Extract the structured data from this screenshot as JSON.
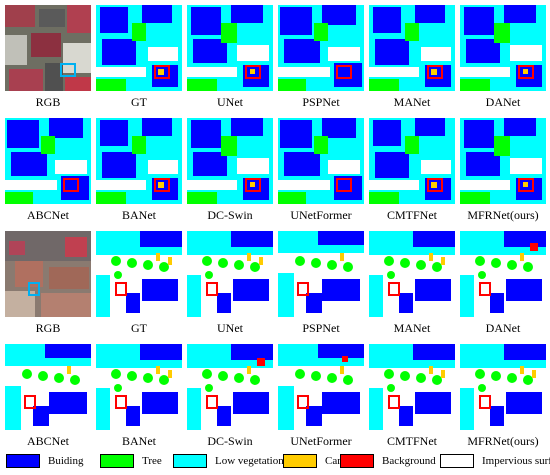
{
  "figure": {
    "rows": [
      {
        "labels": [
          "RGB",
          "GT",
          "UNet",
          "PSPNet",
          "MANet",
          "DANet"
        ]
      },
      {
        "labels": [
          "ABCNet",
          "BANet",
          "DC-Swin",
          "UNetFormer",
          "CMTFNet",
          "MFRNet(ours)"
        ]
      },
      {
        "labels": [
          "RGB",
          "GT",
          "UNet",
          "PSPNet",
          "MANet",
          "DANet"
        ]
      },
      {
        "labels": [
          "ABCNet",
          "BANet",
          "DC-Swin",
          "UNetFormer",
          "CMTFNet",
          "MFRNet(ours)"
        ]
      }
    ]
  },
  "legend": {
    "items": [
      {
        "label": "Buiding",
        "color": "#0000ff"
      },
      {
        "label": "Tree",
        "color": "#00ff00"
      },
      {
        "label": "Low vegetation",
        "color": "#00ffff"
      },
      {
        "label": "Car",
        "color": "#ffcc00"
      },
      {
        "label": "Background",
        "color": "#ff0000"
      },
      {
        "label": "Impervious surfaces",
        "color": "#ffffff"
      }
    ]
  },
  "colors": {
    "building": "#0000ff",
    "tree": "#00ff00",
    "low_vegetation": "#00ffff",
    "car": "#ffcc00",
    "background": "#ff0000",
    "impervious": "#ffffff",
    "highlight_box": "#ff0000",
    "rgb_highlight_box": "#00b0f0"
  }
}
